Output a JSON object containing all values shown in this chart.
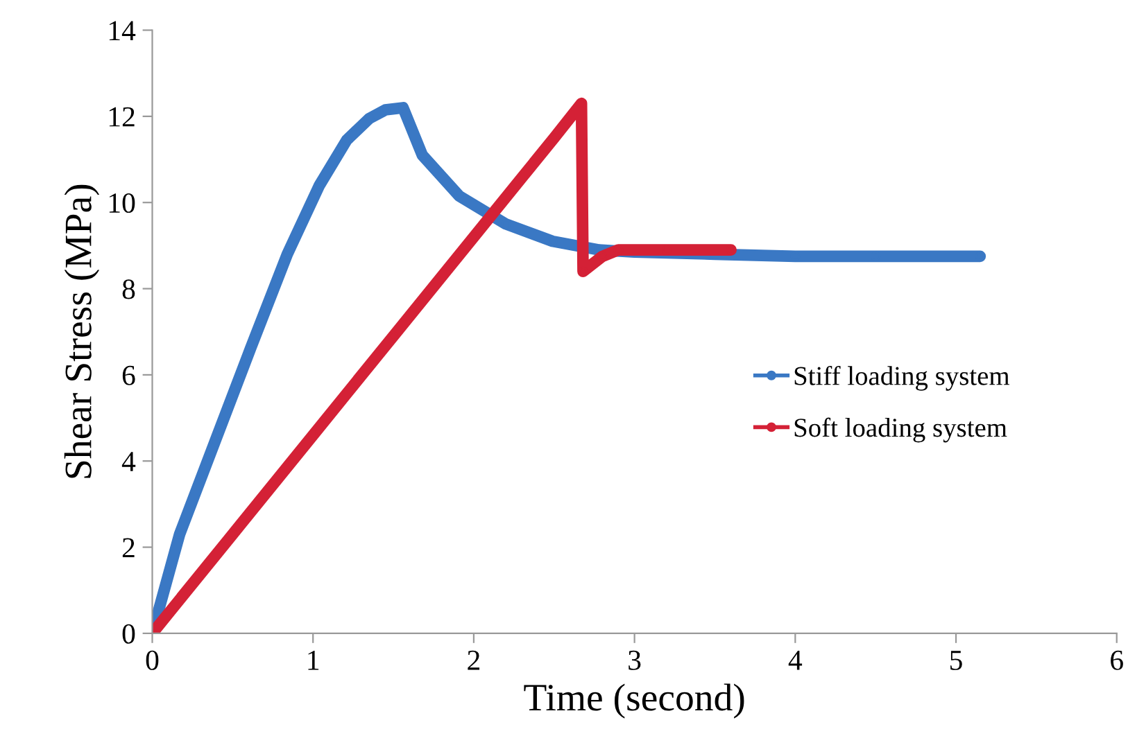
{
  "chart_data": {
    "type": "line",
    "xlabel": "Time (second)",
    "ylabel": "Shear Stress (MPa)",
    "xlim": [
      0,
      6
    ],
    "xticks": [
      0,
      1,
      2,
      3,
      4,
      5,
      6
    ],
    "ylim": [
      0,
      14
    ],
    "yticks": [
      0,
      2,
      4,
      6,
      8,
      10,
      12,
      14
    ],
    "grid": false,
    "legend": "right",
    "marker": "circle",
    "line_style": "solid",
    "series": [
      {
        "name": "Stiff loading system",
        "color": "#3a78c4",
        "x": [
          0,
          0.17,
          0.39,
          0.61,
          0.84,
          1.04,
          1.21,
          1.35,
          1.45,
          1.56,
          1.68,
          1.91,
          2.2,
          2.49,
          2.78,
          3.0,
          3.5,
          4.0,
          4.5,
          5.15
        ],
        "values": [
          0,
          2.3,
          4.45,
          6.6,
          8.8,
          10.4,
          11.45,
          11.95,
          12.15,
          12.2,
          11.1,
          10.15,
          9.5,
          9.1,
          8.9,
          8.85,
          8.8,
          8.75,
          8.75,
          8.75
        ]
      },
      {
        "name": "Soft loading system",
        "color": "#d42136",
        "x": [
          0,
          0.5,
          1.0,
          1.5,
          2.0,
          2.5,
          2.67,
          2.68,
          2.8,
          2.9,
          3.2,
          3.6
        ],
        "values": [
          0,
          2.3,
          4.6,
          6.9,
          9.2,
          11.5,
          12.3,
          8.4,
          8.75,
          8.9,
          8.9,
          8.9
        ]
      }
    ]
  }
}
